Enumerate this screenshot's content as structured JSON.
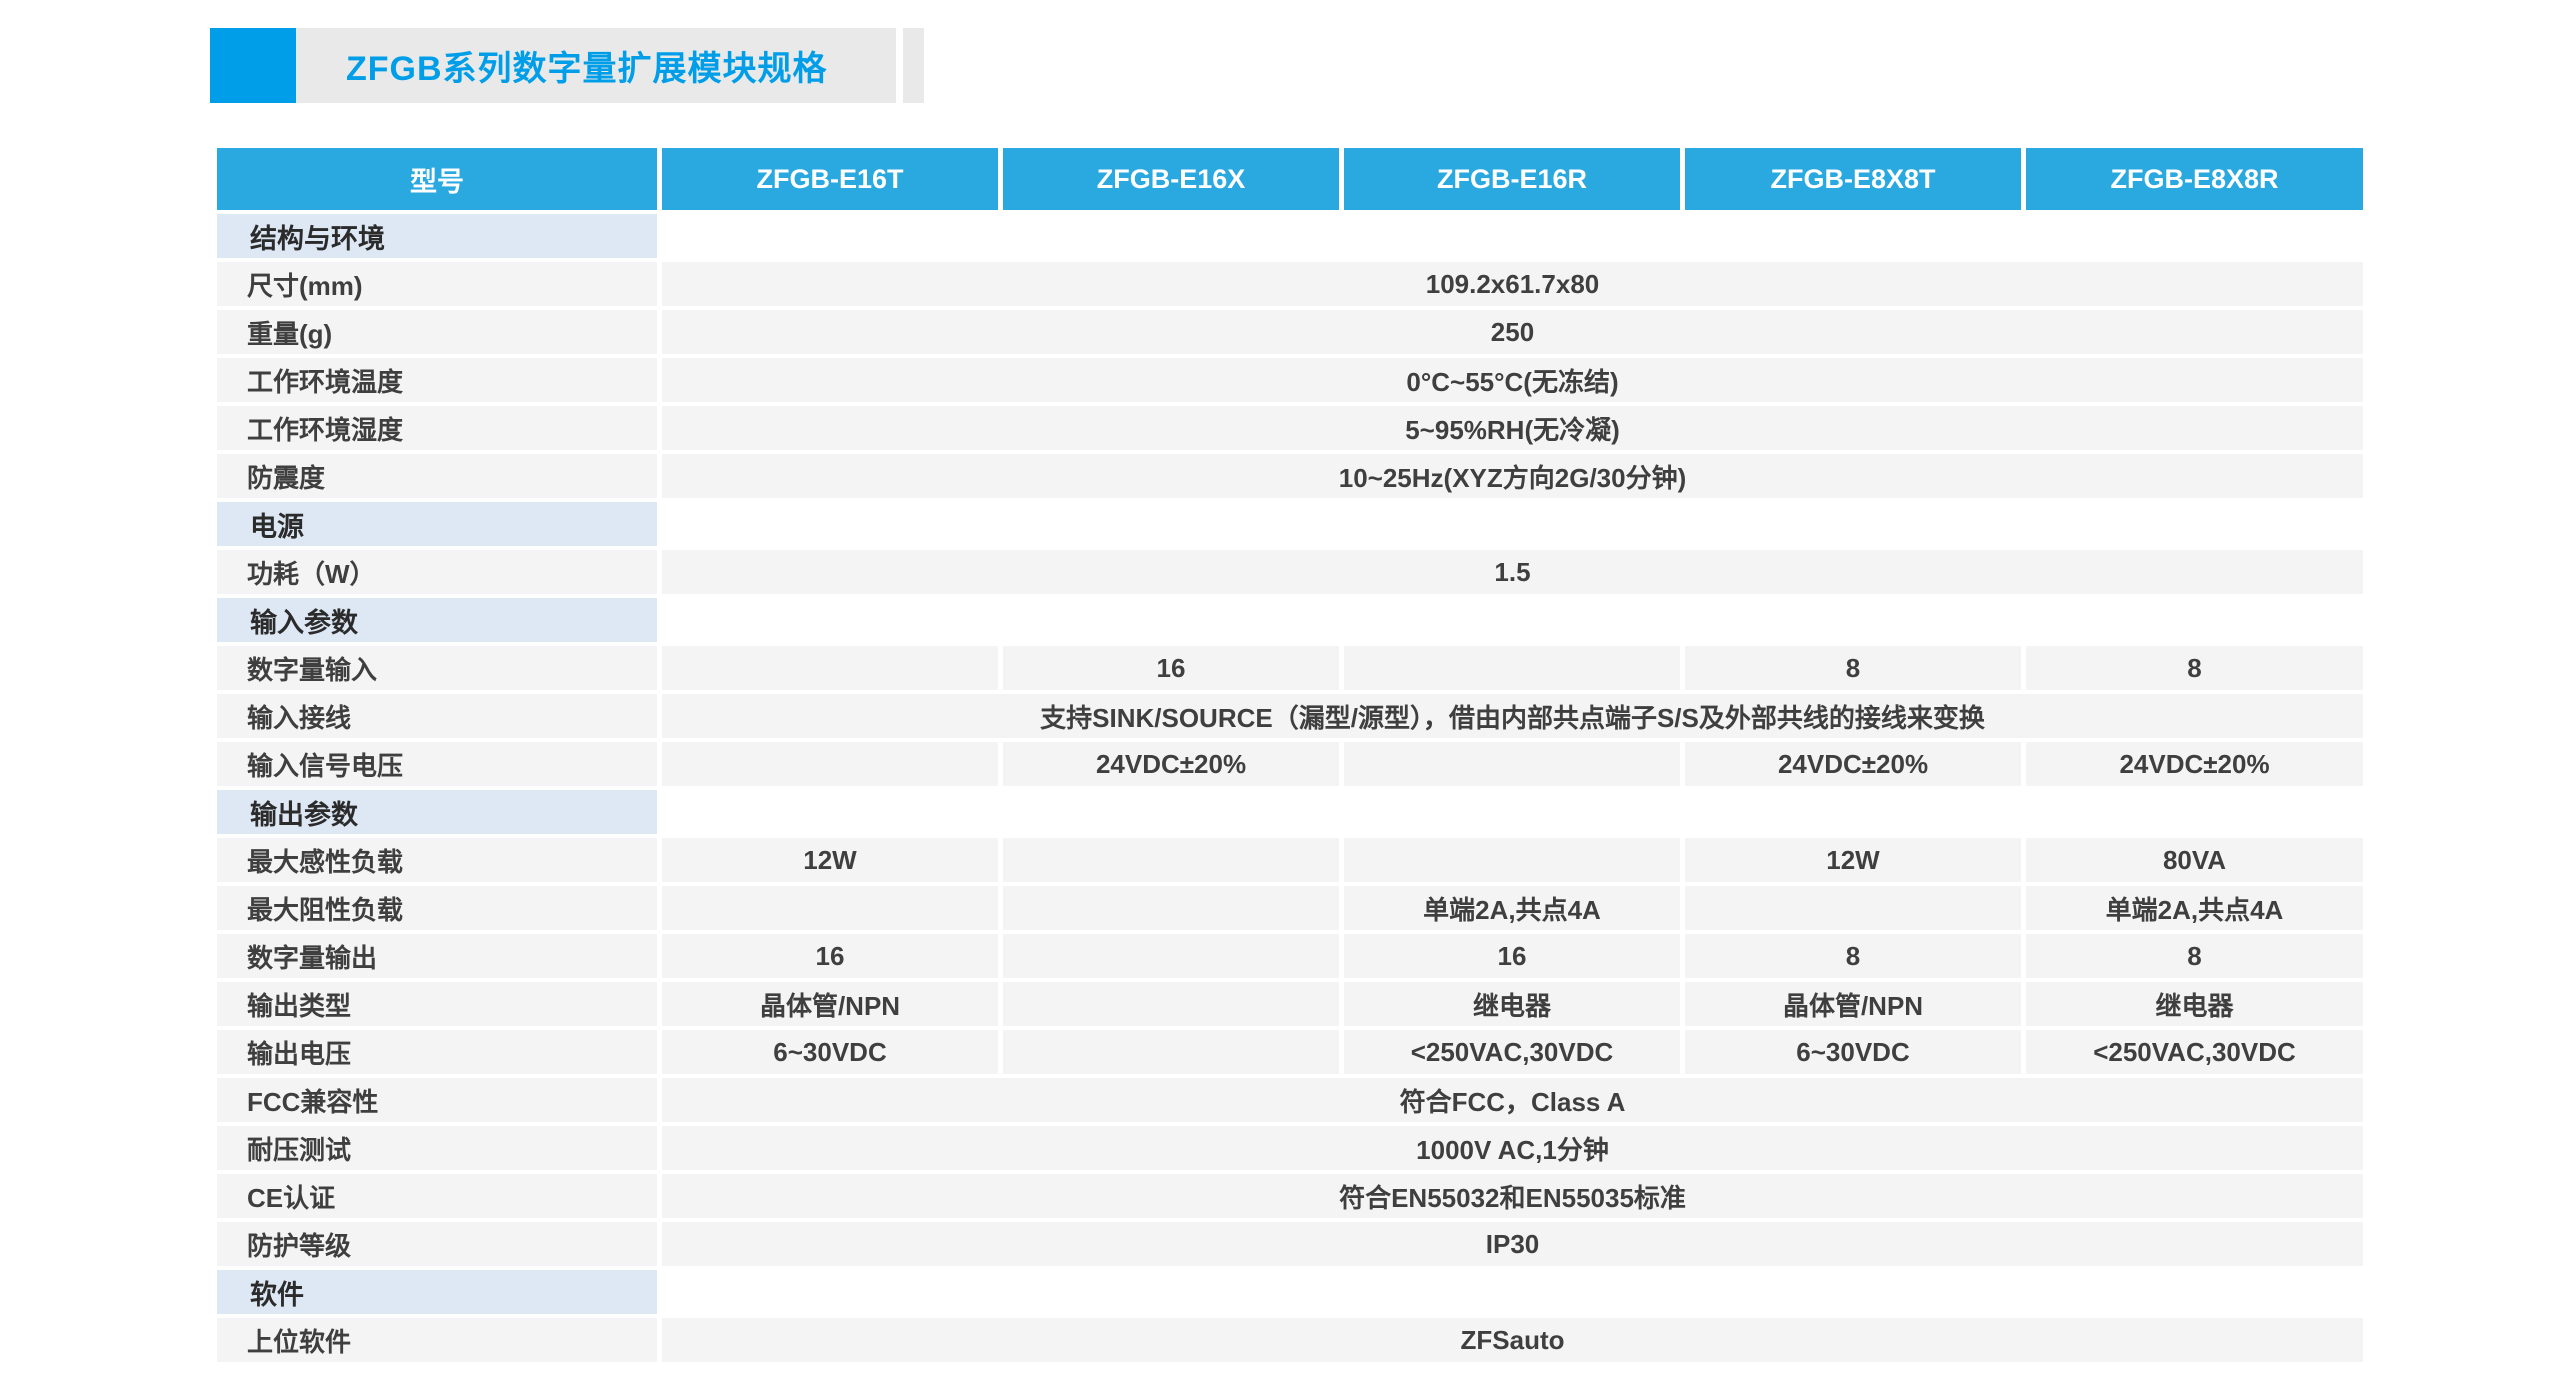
{
  "title": {
    "text": "ZFGB系列数字量扩展模块规格"
  },
  "colors": {
    "accent": "#009ee8",
    "bar-bg": "#e9e9e9",
    "header-bg": "#29a9e0",
    "section-bg": "#dee8f5",
    "row-bg": "#f4f4f4",
    "text": "#3f3f3f"
  },
  "table": {
    "header": [
      "型号",
      "ZFGB-E16T",
      "ZFGB-E16X",
      "ZFGB-E16R",
      "ZFGB-E8X8T",
      "ZFGB-E8X8R"
    ],
    "rows": [
      {
        "type": "section",
        "label": "结构与环境"
      },
      {
        "type": "span",
        "label": "尺寸(mm)",
        "value": "109.2x61.7x80"
      },
      {
        "type": "span",
        "label": "重量(g)",
        "value": "250"
      },
      {
        "type": "span",
        "label": "工作环境温度",
        "value": "0°C~55°C(无冻结)"
      },
      {
        "type": "span",
        "label": "工作环境湿度",
        "value": "5~95%RH(无冷凝)"
      },
      {
        "type": "span",
        "label": "防震度",
        "value": "10~25Hz(XYZ方向2G/30分钟)"
      },
      {
        "type": "section",
        "label": "电源"
      },
      {
        "type": "span",
        "label": "功耗（W）",
        "value": "1.5"
      },
      {
        "type": "section",
        "label": "输入参数"
      },
      {
        "type": "cells",
        "label": "数字量输入",
        "values": [
          "",
          "16",
          "",
          "8",
          "8"
        ]
      },
      {
        "type": "span",
        "label": "输入接线",
        "value": "支持SINK/SOURCE（漏型/源型），借由内部共点端子S/S及外部共线的接线来变换"
      },
      {
        "type": "cells",
        "label": "输入信号电压",
        "values": [
          "",
          "24VDC±20%",
          "",
          "24VDC±20%",
          "24VDC±20%"
        ]
      },
      {
        "type": "section",
        "label": "输出参数"
      },
      {
        "type": "cells",
        "label": "最大感性负载",
        "values": [
          "12W",
          "",
          "",
          "12W",
          "80VA"
        ]
      },
      {
        "type": "cells",
        "label": "最大阻性负载",
        "values": [
          "",
          "",
          "单端2A,共点4A",
          "",
          "单端2A,共点4A"
        ]
      },
      {
        "type": "cells",
        "label": "数字量输出",
        "values": [
          "16",
          "",
          "16",
          "8",
          "8"
        ]
      },
      {
        "type": "cells",
        "label": "输出类型",
        "values": [
          "晶体管/NPN",
          "",
          "继电器",
          "晶体管/NPN",
          "继电器"
        ]
      },
      {
        "type": "cells",
        "label": "输出电压",
        "values": [
          "6~30VDC",
          "",
          "<250VAC,30VDC",
          "6~30VDC",
          "<250VAC,30VDC"
        ]
      },
      {
        "type": "span",
        "label": "FCC兼容性",
        "value": "符合FCC，Class A"
      },
      {
        "type": "span",
        "label": "耐压测试",
        "value": "1000V AC,1分钟"
      },
      {
        "type": "span",
        "label": "CE认证",
        "value": "符合EN55032和EN55035标准"
      },
      {
        "type": "span",
        "label": "防护等级",
        "value": "IP30"
      },
      {
        "type": "section",
        "label": "软件"
      },
      {
        "type": "span",
        "label": "上位软件",
        "value": "ZFSauto"
      }
    ]
  }
}
